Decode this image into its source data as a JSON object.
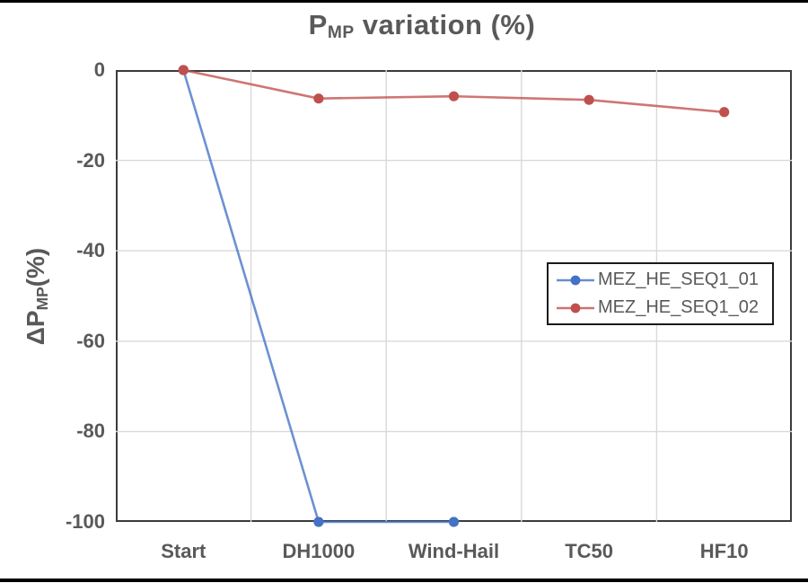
{
  "title": {
    "p": "P",
    "sub": "MP",
    "rest": " variation (%)"
  },
  "y_axis": {
    "label_prefix": "ΔP",
    "label_sub": "MP",
    "label_suffix": "(%)",
    "ticks": [
      0,
      -20,
      -40,
      -60,
      -80,
      -100
    ]
  },
  "chart_data": {
    "type": "line",
    "title": "P_MP variation (%)",
    "xlabel": "",
    "ylabel": "ΔP_MP(%)",
    "categories": [
      "Start",
      "DH1000",
      "Wind-Hail",
      "TC50",
      "HF10"
    ],
    "series": [
      {
        "name": "MEZ_HE_SEQ1_01",
        "color": "#4472C4",
        "values": [
          0,
          -100,
          -100,
          null,
          null
        ]
      },
      {
        "name": "MEZ_HE_SEQ1_02",
        "color": "#C0504D",
        "values": [
          0,
          -6.3,
          -5.8,
          -6.6,
          -9.3
        ]
      }
    ],
    "ylim": [
      -100,
      0
    ],
    "grid": true,
    "legend_position": "middle-right"
  },
  "colors": {
    "text": "#595959",
    "grid": "#D9D9D9",
    "plot_border": "#3B3B3B",
    "frame": "#000000"
  }
}
